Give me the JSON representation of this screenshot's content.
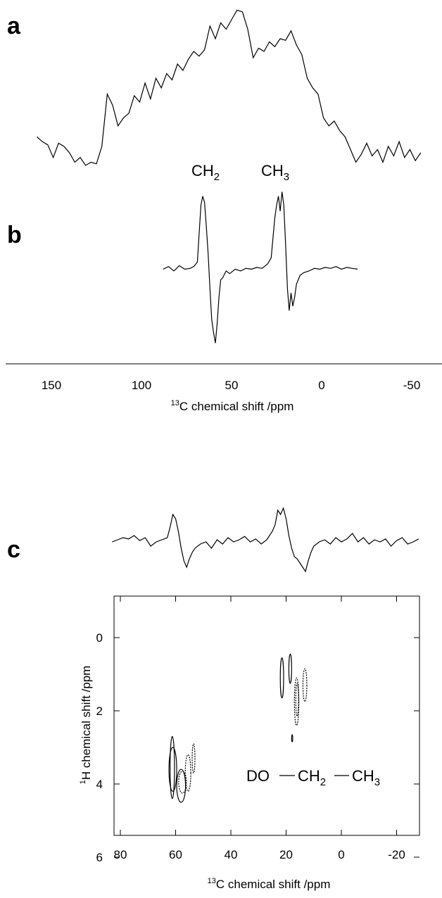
{
  "panels": {
    "a": "a",
    "b": "b",
    "c": "c"
  },
  "peak_labels": {
    "ch2": "CH",
    "ch2_sub": "2",
    "ch3": "CH",
    "ch3_sub": "3"
  },
  "molecule": {
    "part1": "DO",
    "part2": "CH",
    "part2_sub": "2",
    "part3": "CH",
    "part3_sub": "3"
  },
  "chart_data": [
    {
      "id": "a",
      "type": "line",
      "title": "",
      "xlabel": "13C chemical shift /ppm",
      "xlim": [
        158,
        -56
      ],
      "x_reversed": true,
      "series": [
        {
          "x": [
            158,
            155,
            152,
            149,
            146,
            143,
            140,
            137,
            134,
            131,
            128,
            125,
            122,
            119,
            116,
            113,
            110,
            107,
            104,
            101,
            98,
            95,
            92,
            89,
            86,
            83,
            80,
            77,
            74,
            71,
            68,
            65,
            62,
            59,
            56,
            53,
            50,
            47,
            44,
            41,
            38,
            35,
            32,
            29,
            26,
            23,
            20,
            17,
            14,
            11,
            8,
            5,
            2,
            -1,
            -4,
            -7,
            -10,
            -13,
            -16,
            -19,
            -22,
            -25,
            -28,
            -31,
            -34,
            -37,
            -40,
            -43,
            -46,
            -49,
            -52,
            -55
          ],
          "y": [
            0.18,
            0.15,
            0.13,
            0.05,
            0.14,
            0.12,
            0.08,
            0.02,
            0.05,
            0.0,
            0.02,
            0.01,
            0.12,
            0.45,
            0.38,
            0.25,
            0.3,
            0.33,
            0.44,
            0.4,
            0.52,
            0.42,
            0.55,
            0.49,
            0.58,
            0.54,
            0.64,
            0.6,
            0.67,
            0.72,
            0.69,
            0.73,
            0.88,
            0.8,
            0.9,
            0.86,
            0.92,
            0.98,
            0.97,
            0.86,
            0.68,
            0.74,
            0.72,
            0.78,
            0.75,
            0.8,
            0.79,
            0.85,
            0.76,
            0.7,
            0.55,
            0.49,
            0.45,
            0.3,
            0.25,
            0.28,
            0.22,
            0.18,
            0.1,
            0.02,
            0.07,
            0.14,
            0.06,
            0.1,
            0.02,
            0.12,
            0.06,
            0.15,
            0.05,
            0.1,
            0.03,
            0.08
          ]
        }
      ]
    },
    {
      "id": "b",
      "type": "line",
      "title": "",
      "xlabel": "13C chemical shift /ppm",
      "xlim": [
        158,
        -56
      ],
      "x_reversed": true,
      "xticks": [
        150,
        100,
        50,
        0,
        -50
      ],
      "xtick_labels": [
        "150",
        "100",
        "50",
        "0",
        "-50"
      ],
      "series": [
        {
          "x": [
            88,
            85,
            82,
            79,
            76,
            73,
            71,
            69,
            67,
            66,
            65,
            64,
            63,
            62,
            61,
            60,
            59,
            58,
            57,
            56,
            55,
            53,
            51,
            48,
            45,
            42,
            39,
            36,
            33,
            30,
            28,
            26,
            25,
            24,
            23,
            22,
            21,
            20,
            19,
            18,
            17,
            16,
            15,
            14,
            12,
            10,
            7,
            4,
            1,
            -2,
            -5,
            -8,
            -11,
            -14,
            -17,
            -20
          ],
          "y": [
            0.02,
            0.05,
            0.0,
            0.06,
            0.02,
            0.03,
            0.05,
            0.1,
            0.75,
            0.85,
            0.78,
            0.5,
            0.2,
            -0.2,
            -0.55,
            -0.7,
            -0.82,
            -0.6,
            -0.3,
            -0.1,
            -0.08,
            0.0,
            -0.03,
            0.02,
            0.0,
            0.03,
            0.02,
            0.04,
            0.03,
            0.08,
            0.15,
            0.6,
            0.75,
            0.85,
            0.68,
            0.9,
            0.75,
            0.3,
            -0.2,
            -0.45,
            -0.25,
            -0.4,
            -0.3,
            -0.15,
            -0.05,
            -0.02,
            0.0,
            0.03,
            0.02,
            0.04,
            0.03,
            0.05,
            0.02,
            0.04,
            0.03,
            0.02
          ]
        }
      ]
    },
    {
      "id": "c-projection",
      "type": "line",
      "title": "",
      "xlim": [
        83,
        -29
      ],
      "x_reversed": true,
      "series": [
        {
          "x": [
            83,
            81,
            79,
            77,
            75,
            73,
            71,
            69,
            67,
            65,
            63,
            62,
            61,
            60,
            59,
            58,
            57,
            56,
            55,
            54,
            53,
            51,
            49,
            47,
            45,
            43,
            41,
            39,
            37,
            35,
            33,
            31,
            29,
            27,
            25,
            24,
            23,
            22,
            21,
            20,
            19,
            18,
            17,
            16,
            15,
            14,
            13,
            12,
            11,
            10,
            8,
            6,
            4,
            2,
            0,
            -2,
            -4,
            -6,
            -8,
            -10,
            -12,
            -14,
            -16,
            -18,
            -20,
            -22,
            -24,
            -26,
            -28
          ],
          "y": [
            0.05,
            0.1,
            0.15,
            0.12,
            0.2,
            0.08,
            0.15,
            -0.05,
            0.05,
            0.1,
            0.15,
            0.4,
            0.7,
            0.6,
            0.3,
            -0.1,
            -0.4,
            -0.55,
            -0.35,
            -0.2,
            -0.1,
            0.0,
            0.05,
            -0.1,
            0.1,
            0.0,
            0.15,
            0.05,
            0.1,
            0.18,
            0.05,
            0.12,
            0.0,
            0.1,
            0.3,
            0.45,
            0.8,
            0.7,
            0.85,
            0.6,
            0.2,
            -0.1,
            -0.3,
            -0.35,
            -0.45,
            -0.55,
            -0.65,
            -0.4,
            -0.2,
            -0.05,
            0.05,
            0.1,
            0.0,
            0.15,
            0.05,
            0.12,
            0.25,
            0.05,
            0.15,
            0.0,
            0.1,
            0.05,
            0.12,
            -0.05,
            0.08,
            0.15,
            0.0,
            0.05,
            0.12
          ]
        }
      ]
    },
    {
      "id": "c-2d",
      "type": "contour",
      "title": "",
      "xlabel": "13C chemical shift /ppm",
      "ylabel": "1H chemical shift /ppm",
      "xlim": [
        83,
        -29
      ],
      "ylim": [
        -1.7,
        7.0
      ],
      "x_reversed": true,
      "y_reversed": true,
      "xticks": [
        80,
        60,
        40,
        20,
        0,
        -20
      ],
      "xtick_labels": [
        "80",
        "60",
        "40",
        "20",
        "0",
        "-20"
      ],
      "yticks": [
        0,
        2,
        4,
        6
      ],
      "ytick_labels": [
        "0",
        "2",
        "4",
        "6"
      ],
      "contours": [
        {
          "x": 61.2,
          "y": 3.55,
          "rx": 0.8,
          "ry": 0.85,
          "style": "solid"
        },
        {
          "x": 61.0,
          "y": 3.6,
          "rx": 1.4,
          "ry": 0.6,
          "style": "solid"
        },
        {
          "x": 58.0,
          "y": 4.05,
          "rx": 1.6,
          "ry": 0.45,
          "style": "solid"
        },
        {
          "x": 57.5,
          "y": 3.95,
          "rx": 1.4,
          "ry": 0.3,
          "style": "dashed"
        },
        {
          "x": 55.5,
          "y": 3.7,
          "rx": 1.0,
          "ry": 0.5,
          "style": "dashed"
        },
        {
          "x": 53.5,
          "y": 3.3,
          "rx": 0.5,
          "ry": 0.4,
          "style": "dashed"
        },
        {
          "x": 21.5,
          "y": 1.1,
          "rx": 0.6,
          "ry": 0.55,
          "style": "solid"
        },
        {
          "x": 18.5,
          "y": 0.85,
          "rx": 0.5,
          "ry": 0.4,
          "style": "solid"
        },
        {
          "x": 16.2,
          "y": 1.75,
          "rx": 0.8,
          "ry": 0.65,
          "style": "dashed"
        },
        {
          "x": 16.0,
          "y": 1.7,
          "rx": 0.5,
          "ry": 0.45,
          "style": "dashed"
        },
        {
          "x": 13.2,
          "y": 1.3,
          "rx": 0.7,
          "ry": 0.45,
          "style": "dashed"
        },
        {
          "x": 17.8,
          "y": 2.75,
          "rx": 0.2,
          "ry": 0.1,
          "style": "solid"
        }
      ]
    }
  ],
  "axis_labels": {
    "b_x": "C chemical shift /ppm",
    "b_x_sup": "13",
    "c_x": "C chemical shift /ppm",
    "c_x_sup": "13",
    "c_y": "H chemical shift /ppm",
    "c_y_sup": "1"
  }
}
